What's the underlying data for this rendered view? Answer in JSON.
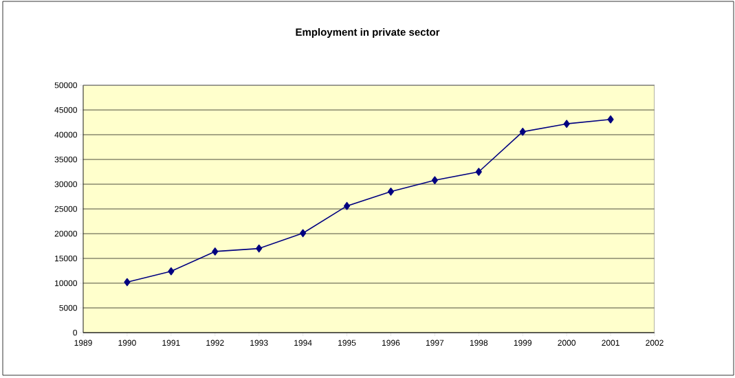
{
  "chart_data": {
    "type": "line",
    "title": "Employment in private sector",
    "x": [
      1990,
      1991,
      1992,
      1993,
      1994,
      1995,
      1996,
      1997,
      1998,
      1999,
      2000,
      2001
    ],
    "series": [
      {
        "color": "#000080",
        "values": [
          10200,
          12400,
          16400,
          17000,
          20100,
          25600,
          28500,
          30800,
          32500,
          40600,
          42200,
          43100
        ]
      }
    ],
    "xlim": [
      1989,
      2002
    ],
    "xticks": [
      1989,
      1990,
      1991,
      1992,
      1993,
      1994,
      1995,
      1996,
      1997,
      1998,
      1999,
      2000,
      2001,
      2002
    ],
    "ylim": [
      0,
      50000
    ],
    "yticks": [
      0,
      5000,
      10000,
      15000,
      20000,
      25000,
      30000,
      35000,
      40000,
      45000,
      50000
    ],
    "grid": "y",
    "marker": "diamond",
    "line_style": "solid"
  }
}
